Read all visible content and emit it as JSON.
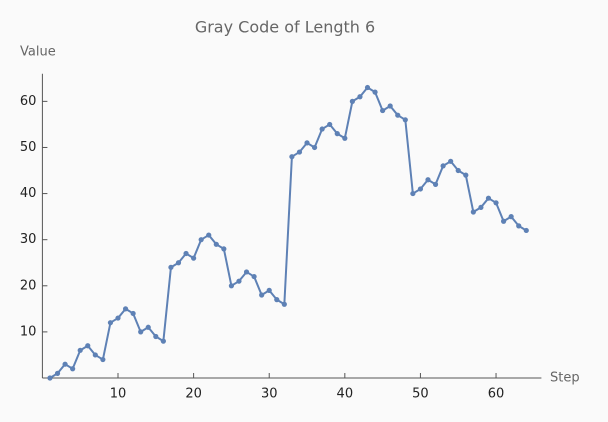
{
  "chart_data": {
    "type": "line",
    "title": "Gray Code of Length 6",
    "x_label": "Step",
    "y_label": "Value",
    "x": [
      1,
      2,
      3,
      4,
      5,
      6,
      7,
      8,
      9,
      10,
      11,
      12,
      13,
      14,
      15,
      16,
      17,
      18,
      19,
      20,
      21,
      22,
      23,
      24,
      25,
      26,
      27,
      28,
      29,
      30,
      31,
      32,
      33,
      34,
      35,
      36,
      37,
      38,
      39,
      40,
      41,
      42,
      43,
      44,
      45,
      46,
      47,
      48,
      49,
      50,
      51,
      52,
      53,
      54,
      55,
      56,
      57,
      58,
      59,
      60,
      61,
      62,
      63,
      64
    ],
    "values": [
      0,
      1,
      3,
      2,
      6,
      7,
      5,
      4,
      12,
      13,
      15,
      14,
      10,
      11,
      9,
      8,
      24,
      25,
      27,
      26,
      30,
      31,
      29,
      28,
      20,
      21,
      23,
      22,
      18,
      19,
      17,
      16,
      48,
      49,
      51,
      50,
      54,
      55,
      53,
      52,
      60,
      61,
      63,
      62,
      58,
      59,
      57,
      56,
      40,
      41,
      43,
      42,
      46,
      47,
      45,
      44,
      36,
      37,
      39,
      38,
      34,
      35,
      33,
      32
    ],
    "color": "#5e81b5",
    "xlim": [
      0,
      66
    ],
    "ylim": [
      0,
      66
    ],
    "xticks": [
      10,
      20,
      30,
      40,
      50,
      60
    ],
    "yticks": [
      10,
      20,
      30,
      40,
      50,
      60
    ]
  }
}
